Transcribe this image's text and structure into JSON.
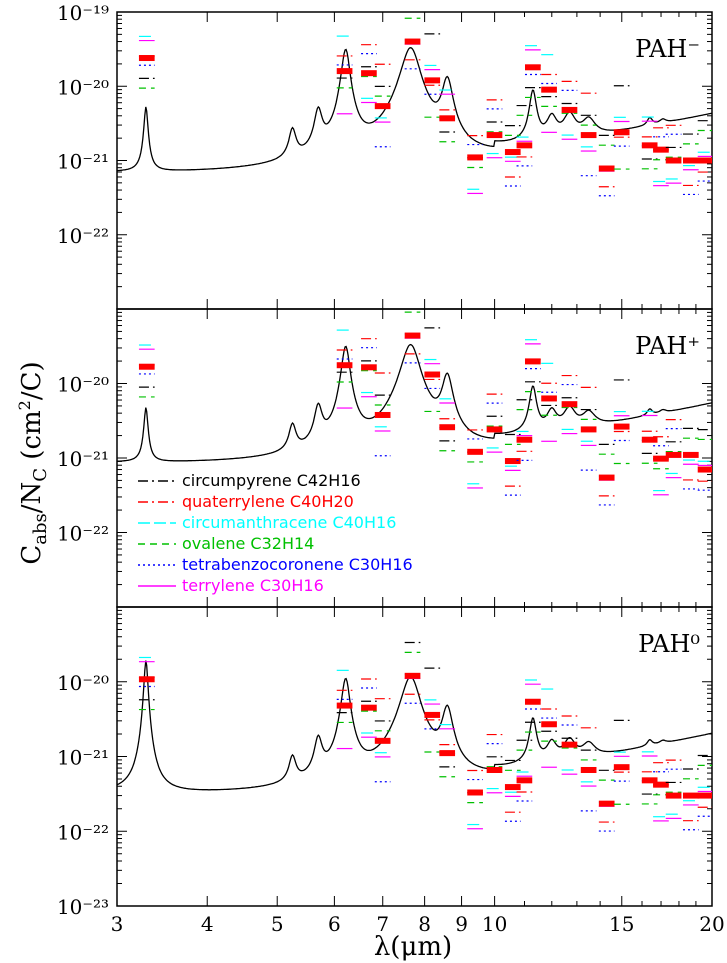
{
  "chart_data": {
    "type": "line",
    "xlabel": "λ(μm)",
    "ylabel": "C_abs/N_C (cm²/C)",
    "x_scale": "log",
    "y_scale": "log",
    "xlim": [
      3,
      20
    ],
    "x_ticks": [
      3,
      4,
      5,
      6,
      7,
      8,
      9,
      10,
      15,
      20
    ],
    "x_tick_labels": [
      "3",
      "4",
      "5",
      "6",
      "7",
      "8",
      "9",
      "10",
      "15",
      "20"
    ],
    "legend": [
      {
        "name": "circumpyrene",
        "formula": "C42H16",
        "color": "#000000",
        "dash": "dashdot"
      },
      {
        "name": "quaterrylene",
        "formula": "C40H20",
        "color": "#ff0000",
        "dash": "dashdot"
      },
      {
        "name": "circumanthracene",
        "formula": "C40H16",
        "color": "#00ffff",
        "dash": "longdash"
      },
      {
        "name": "ovalene",
        "formula": "C32H14",
        "color": "#00c000",
        "dash": "dash"
      },
      {
        "name": "tetrabenzocoronene",
        "formula": "C30H16",
        "color": "#0000ff",
        "dash": "dot"
      },
      {
        "name": "terrylene",
        "formula": "C30H16",
        "color": "#ff00ff",
        "dash": "solid"
      }
    ],
    "panels": [
      {
        "label": "PAH⁻",
        "ylim": [
          1e-23,
          1e-19
        ],
        "y_tick_labels": [
          "10⁻¹⁹",
          "10⁻²⁰",
          "10⁻²¹",
          "10⁻²²"
        ],
        "y_tick_values": [
          1e-19,
          1e-20,
          1e-21,
          1e-22
        ],
        "curve_params": {
          "base": 5.8e-22,
          "peak_33": 4.6e-21,
          "scale": 1.0
        }
      },
      {
        "label": "PAH⁺",
        "ylim": [
          1e-23,
          1e-19
        ],
        "y_tick_labels": [
          "10⁻²⁰",
          "10⁻²¹",
          "10⁻²²"
        ],
        "y_tick_values": [
          1e-20,
          1e-21,
          1e-22
        ],
        "curve_params": {
          "base": 7.5e-22,
          "peak_33": 3.9e-21,
          "scale": 1.0
        }
      },
      {
        "label": "PAH⁰",
        "ylim": [
          1e-23,
          1e-19
        ],
        "y_tick_labels": [
          "10⁻²⁰",
          "10⁻²¹",
          "10⁻²²",
          "10⁻²³"
        ],
        "y_tick_values": [
          1e-20,
          1e-21,
          1e-22,
          1e-23
        ],
        "curve_params": {
          "base": 2.8e-22,
          "peak_33": 1.9e-20,
          "scale": 0.35
        }
      }
    ],
    "band_centers_um": [
      3.3,
      6.2,
      6.7,
      7.0,
      7.7,
      8.2,
      8.6,
      9.4,
      10.0,
      10.6,
      11.0,
      11.3,
      11.9,
      12.7,
      13.5,
      14.3,
      15.0,
      16.4,
      17.0,
      17.7,
      18.7,
      19.6
    ],
    "avg_bars_minus": [
      2.4e-20,
      1.6e-20,
      1.5e-20,
      5.4e-21,
      4e-20,
      1.2e-20,
      3.7e-21,
      1.1e-21,
      2.2e-21,
      1.3e-21,
      1.6e-21,
      1.8e-20,
      9e-21,
      4.8e-21,
      2.2e-21,
      7.8e-22,
      2.4e-21,
      1.6e-21,
      1.4e-21,
      1e-21,
      1e-21,
      1e-21
    ]
  }
}
